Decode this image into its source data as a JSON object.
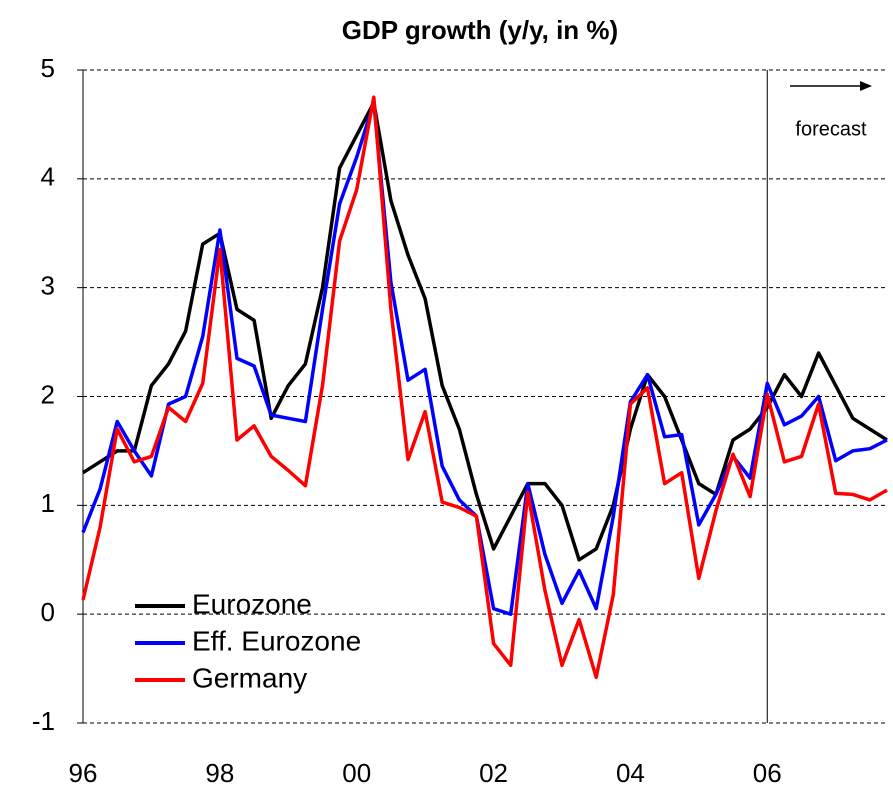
{
  "chart_data": {
    "type": "line",
    "title": "GDP growth (y/y, in %)",
    "categories": [
      "96",
      null,
      null,
      null,
      null,
      null,
      null,
      null,
      "98",
      null,
      null,
      null,
      null,
      null,
      null,
      null,
      "00",
      null,
      null,
      null,
      null,
      null,
      null,
      null,
      "02",
      null,
      null,
      null,
      null,
      null,
      null,
      null,
      "04",
      null,
      null,
      null,
      null,
      null,
      null,
      null,
      "06",
      null,
      null,
      null,
      null,
      null,
      null,
      null
    ],
    "series": [
      {
        "name": "Eurozone",
        "color": "#000000",
        "values": [
          1.3,
          1.4,
          1.5,
          1.5,
          2.1,
          2.3,
          2.6,
          3.4,
          3.5,
          2.8,
          2.7,
          1.8,
          2.1,
          2.3,
          3.0,
          4.1,
          4.4,
          4.7,
          3.8,
          3.3,
          2.9,
          2.1,
          1.7,
          1.1,
          0.6,
          0.9,
          1.2,
          1.2,
          1.0,
          0.5,
          0.6,
          1.0,
          1.7,
          2.2,
          2.0,
          1.6,
          1.2,
          1.1,
          1.6,
          1.7,
          1.9,
          2.2,
          2.0,
          2.4,
          2.1,
          1.8,
          1.7,
          1.6
        ]
      },
      {
        "name": "Eff. Eurozone",
        "color": "#0000ff",
        "values": [
          0.75,
          1.15,
          1.77,
          1.5,
          1.27,
          1.93,
          2.0,
          2.55,
          3.53,
          2.35,
          2.28,
          1.83,
          1.8,
          1.77,
          2.8,
          3.77,
          4.2,
          4.7,
          3.05,
          2.15,
          2.25,
          1.36,
          1.05,
          0.9,
          0.05,
          0.0,
          1.2,
          0.55,
          0.1,
          0.4,
          0.05,
          0.9,
          1.95,
          2.2,
          1.63,
          1.65,
          0.82,
          1.1,
          1.45,
          1.25,
          2.12,
          1.74,
          1.82,
          2.0,
          1.41,
          1.5,
          1.52,
          1.6
        ]
      },
      {
        "name": "Germany",
        "color": "#ff0000",
        "values": [
          0.13,
          0.8,
          1.7,
          1.4,
          1.45,
          1.9,
          1.77,
          2.12,
          3.35,
          1.6,
          1.73,
          1.45,
          1.32,
          1.18,
          2.1,
          3.43,
          3.9,
          4.75,
          2.8,
          1.42,
          1.86,
          1.03,
          0.98,
          0.9,
          -0.27,
          -0.47,
          1.12,
          0.22,
          -0.47,
          -0.05,
          -0.58,
          0.18,
          1.93,
          2.08,
          1.2,
          1.3,
          0.33,
          0.95,
          1.47,
          1.08,
          2.02,
          1.4,
          1.45,
          1.93,
          1.11,
          1.1,
          1.05,
          1.14
        ]
      }
    ],
    "ylim": [
      -1,
      5
    ],
    "yticks": [
      -1,
      0,
      1,
      2,
      3,
      4,
      5
    ],
    "grid": true,
    "legend": "lower left",
    "annotation": {
      "text": "forecast",
      "at": "06"
    }
  }
}
